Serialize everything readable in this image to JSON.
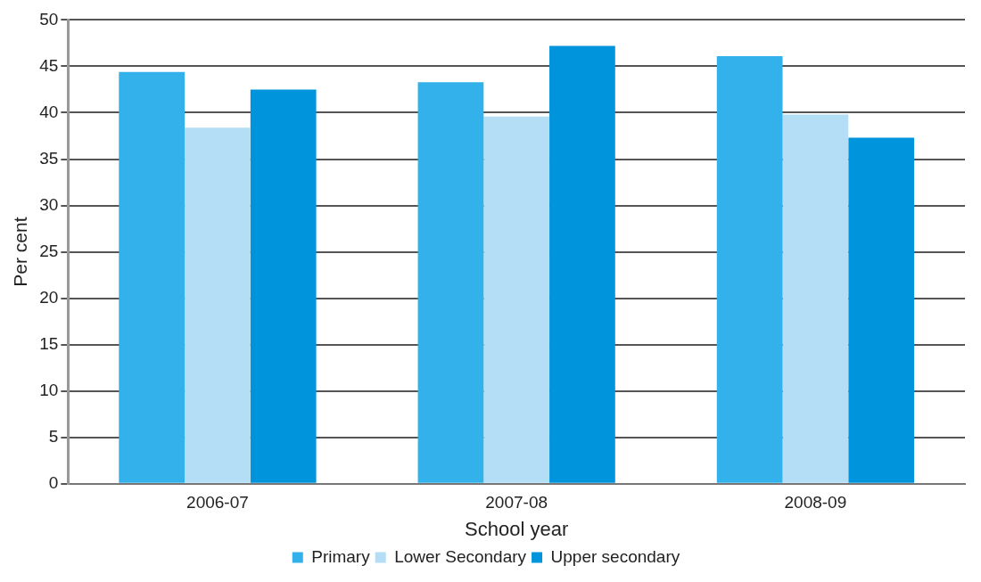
{
  "chart_data": {
    "type": "bar",
    "xlabel": "School year",
    "ylabel": "Per cent",
    "categories": [
      "2006-07",
      "2007-08",
      "2008-09"
    ],
    "series": [
      {
        "name": "Primary",
        "color": "#33b1ea",
        "values": [
          44.4,
          43.3,
          46.1
        ]
      },
      {
        "name": "Lower Secondary",
        "color": "#b3def6",
        "values": [
          38.4,
          39.6,
          39.8
        ]
      },
      {
        "name": "Upper secondary",
        "color": "#0094dc",
        "values": [
          42.5,
          47.2,
          37.3
        ]
      }
    ],
    "ylim": [
      0,
      50
    ],
    "yticks": [
      0,
      5,
      10,
      15,
      20,
      25,
      30,
      35,
      40,
      45,
      50
    ],
    "grid": "y",
    "legend": "bottom"
  }
}
